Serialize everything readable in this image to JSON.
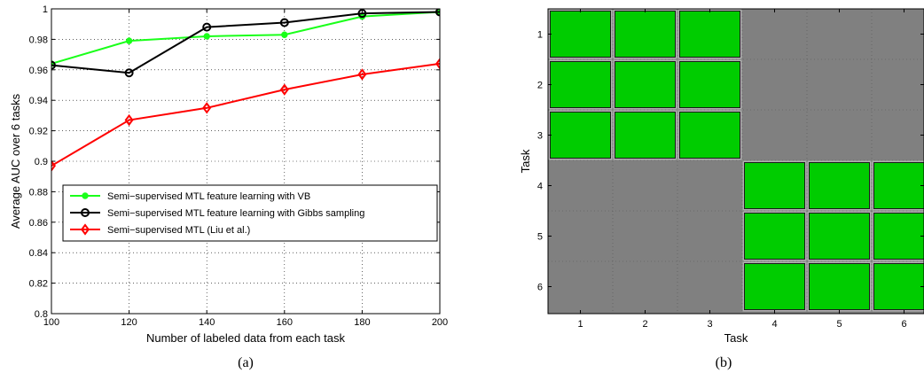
{
  "chart_data": [
    {
      "type": "line",
      "caption": "(a)",
      "xlabel": "Number of labeled data from each task",
      "ylabel": "Average AUC over 6 tasks",
      "x": [
        100,
        120,
        140,
        160,
        180,
        200
      ],
      "xlim": [
        100,
        200
      ],
      "ylim": [
        0.8,
        1.0
      ],
      "xticks": [
        "100",
        "120",
        "140",
        "160",
        "180",
        "200"
      ],
      "yticks": [
        "0.8",
        "0.82",
        "0.84",
        "0.86",
        "0.88",
        "0.9",
        "0.92",
        "0.94",
        "0.96",
        "0.98",
        "1"
      ],
      "grid": true,
      "legend_position": "lower-right",
      "series": [
        {
          "name": "Semi−supervised MTL feature learning with VB",
          "color": "#1aff1a",
          "marker": "dot",
          "values": [
            0.964,
            0.979,
            0.982,
            0.983,
            0.995,
            0.998
          ]
        },
        {
          "name": "Semi−supervised MTL feature learning with Gibbs sampling",
          "color": "#000000",
          "marker": "circle",
          "values": [
            0.963,
            0.958,
            0.988,
            0.991,
            0.997,
            0.998
          ]
        },
        {
          "name": "Semi−supervised MTL (Liu et al.)",
          "color": "#ff0000",
          "marker": "diamond",
          "values": [
            0.897,
            0.927,
            0.935,
            0.947,
            0.957,
            0.964
          ]
        }
      ]
    },
    {
      "type": "heatmap",
      "caption": "(b)",
      "xlabel": "Task",
      "ylabel": "Task",
      "xticks": [
        "1",
        "2",
        "3",
        "4",
        "5",
        "6"
      ],
      "yticks": [
        "1",
        "2",
        "3",
        "4",
        "5",
        "6"
      ],
      "colors": {
        "on": "#00cc00",
        "off": "#808080"
      },
      "matrix": [
        [
          1,
          1,
          1,
          0,
          0,
          0
        ],
        [
          1,
          1,
          1,
          0,
          0,
          0
        ],
        [
          1,
          1,
          1,
          0,
          0,
          0
        ],
        [
          0,
          0,
          0,
          1,
          1,
          1
        ],
        [
          0,
          0,
          0,
          1,
          1,
          1
        ],
        [
          0,
          0,
          0,
          1,
          1,
          1
        ]
      ]
    }
  ]
}
